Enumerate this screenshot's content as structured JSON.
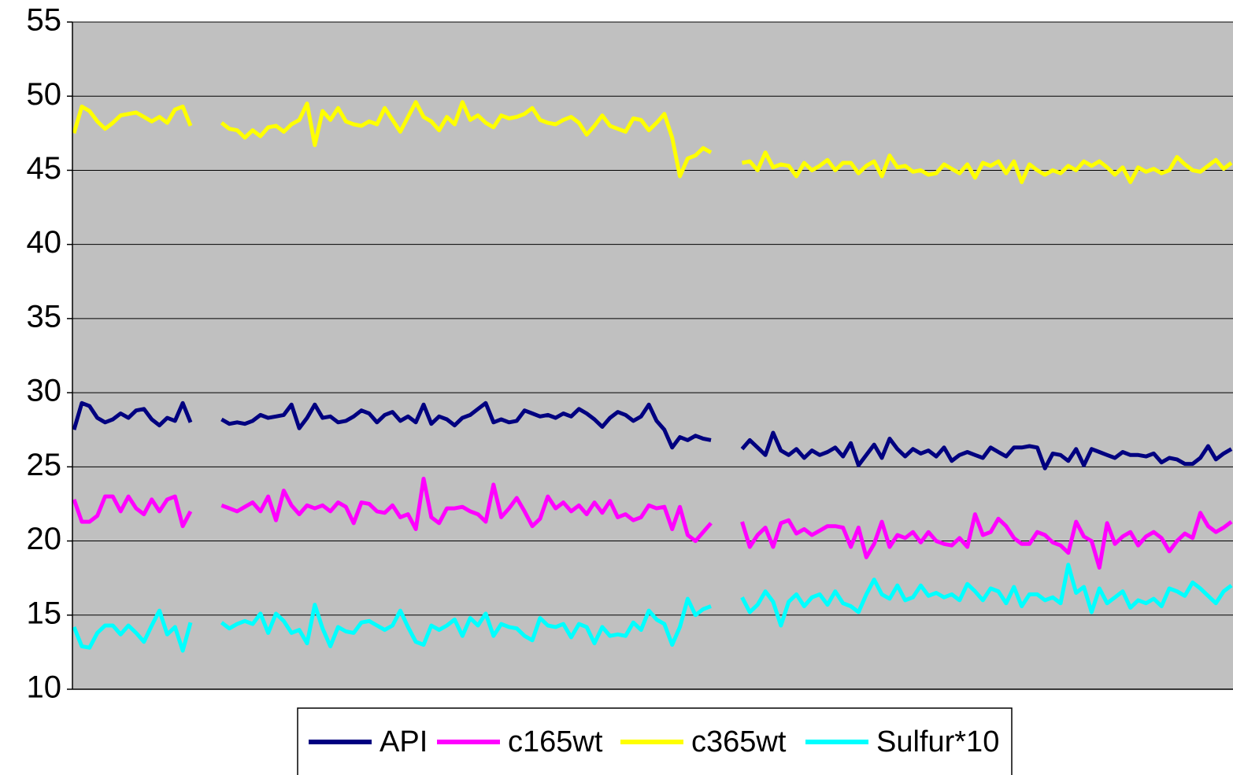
{
  "chart_data": {
    "type": "line",
    "ylim": [
      10,
      55
    ],
    "yticks": [
      10,
      15,
      20,
      25,
      30,
      35,
      40,
      45,
      50,
      55
    ],
    "grid": true,
    "legend": "bottom",
    "background": "#c0c0c0",
    "series": [
      {
        "name": "API",
        "color": "#000080",
        "values": [
          27.5,
          29.3,
          29.1,
          28.3,
          28.0,
          28.2,
          28.6,
          28.3,
          28.8,
          28.9,
          28.2,
          27.8,
          28.3,
          28.1,
          29.3,
          28.0,
          null,
          null,
          null,
          28.2,
          27.9,
          28.0,
          27.9,
          28.1,
          28.5,
          28.3,
          28.4,
          28.5,
          29.2,
          27.6,
          28.3,
          29.2,
          28.3,
          28.4,
          28.0,
          28.1,
          28.4,
          28.8,
          28.6,
          28.0,
          28.5,
          28.7,
          28.1,
          28.4,
          28.0,
          29.2,
          27.9,
          28.4,
          28.2,
          27.8,
          28.3,
          28.5,
          28.9,
          29.3,
          28.0,
          28.2,
          28.0,
          28.1,
          28.8,
          28.6,
          28.4,
          28.5,
          28.3,
          28.6,
          28.4,
          28.9,
          28.6,
          28.2,
          27.7,
          28.3,
          28.7,
          28.5,
          28.1,
          28.4,
          29.2,
          28.1,
          27.5,
          26.3,
          27.0,
          26.8,
          27.1,
          26.9,
          26.8,
          null,
          null,
          null,
          26.2,
          26.8,
          26.3,
          25.8,
          27.3,
          26.1,
          25.8,
          26.2,
          25.6,
          26.1,
          25.8,
          26.0,
          26.3,
          25.7,
          26.6,
          25.1,
          25.8,
          26.5,
          25.6,
          26.9,
          26.2,
          25.7,
          26.2,
          25.9,
          26.1,
          25.7,
          26.3,
          25.4,
          25.8,
          26.0,
          25.8,
          25.6,
          26.3,
          26.0,
          25.7,
          26.3,
          26.3,
          26.4,
          26.3,
          24.9,
          25.9,
          25.8,
          25.4,
          26.2,
          25.1,
          26.2,
          26.0,
          25.8,
          25.6,
          26.0,
          25.8,
          25.8,
          25.7,
          25.9,
          25.3,
          25.6,
          25.5,
          25.2,
          25.2,
          25.6,
          26.4,
          25.5,
          25.9,
          26.2
        ]
      },
      {
        "name": "c165wt",
        "color": "#ff00ff",
        "values": [
          22.8,
          21.3,
          21.3,
          21.7,
          23.0,
          23.0,
          22.0,
          23.0,
          22.2,
          21.8,
          22.8,
          22.0,
          22.8,
          23.0,
          21.0,
          22.0,
          null,
          null,
          null,
          22.4,
          22.2,
          22.0,
          22.3,
          22.6,
          22.0,
          23.0,
          21.4,
          23.4,
          22.4,
          21.8,
          22.4,
          22.2,
          22.4,
          22.0,
          22.6,
          22.3,
          21.2,
          22.6,
          22.5,
          22.0,
          21.9,
          22.4,
          21.6,
          21.8,
          20.8,
          24.2,
          21.6,
          21.2,
          22.2,
          22.2,
          22.3,
          22.0,
          21.8,
          21.3,
          23.8,
          21.6,
          22.2,
          22.9,
          22.0,
          21.0,
          21.5,
          23.0,
          22.2,
          22.6,
          22.0,
          22.4,
          21.8,
          22.6,
          21.9,
          22.7,
          21.6,
          21.8,
          21.4,
          21.6,
          22.4,
          22.2,
          22.3,
          20.8,
          22.3,
          20.4,
          20.0,
          20.6,
          21.2,
          null,
          null,
          null,
          21.3,
          19.6,
          20.4,
          20.9,
          19.6,
          21.2,
          21.4,
          20.5,
          20.8,
          20.4,
          20.7,
          21.0,
          21.0,
          20.9,
          19.6,
          20.9,
          18.9,
          19.8,
          21.3,
          19.6,
          20.4,
          20.2,
          20.6,
          19.9,
          20.6,
          20.0,
          19.8,
          19.7,
          20.2,
          19.6,
          21.8,
          20.4,
          20.6,
          21.5,
          21.0,
          20.2,
          19.8,
          19.8,
          20.6,
          20.4,
          19.9,
          19.7,
          19.2,
          21.3,
          20.3,
          20.0,
          18.2,
          21.2,
          19.8,
          20.3,
          20.6,
          19.7,
          20.3,
          20.6,
          20.2,
          19.3,
          20.0,
          20.5,
          20.2,
          21.9,
          21.0,
          20.6,
          20.9,
          21.3
        ]
      },
      {
        "name": "c365wt",
        "color": "#ffff00",
        "values": [
          47.5,
          49.3,
          49.0,
          48.3,
          47.8,
          48.2,
          48.7,
          48.8,
          48.9,
          48.6,
          48.3,
          48.6,
          48.2,
          49.1,
          49.3,
          48.0,
          null,
          null,
          null,
          48.2,
          47.8,
          47.7,
          47.2,
          47.7,
          47.3,
          47.9,
          48.0,
          47.6,
          48.1,
          48.4,
          49.5,
          46.7,
          49.0,
          48.4,
          49.2,
          48.3,
          48.1,
          48.0,
          48.3,
          48.1,
          49.2,
          48.4,
          47.6,
          48.6,
          49.6,
          48.6,
          48.3,
          47.7,
          48.6,
          48.1,
          49.6,
          48.4,
          48.7,
          48.2,
          47.9,
          48.7,
          48.5,
          48.6,
          48.8,
          49.2,
          48.4,
          48.2,
          48.1,
          48.4,
          48.6,
          48.2,
          47.4,
          48.0,
          48.7,
          48.0,
          47.8,
          47.6,
          48.5,
          48.4,
          47.7,
          48.2,
          48.8,
          47.2,
          44.6,
          45.8,
          46.0,
          46.5,
          46.2,
          null,
          null,
          null,
          45.5,
          45.6,
          45.0,
          46.2,
          45.2,
          45.4,
          45.3,
          44.6,
          45.5,
          45.0,
          45.3,
          45.7,
          45.0,
          45.5,
          45.5,
          44.8,
          45.3,
          45.6,
          44.6,
          46.0,
          45.2,
          45.3,
          44.9,
          45.0,
          44.7,
          44.8,
          45.4,
          45.1,
          44.8,
          45.4,
          44.5,
          45.5,
          45.3,
          45.6,
          44.8,
          45.6,
          44.2,
          45.4,
          45.0,
          44.7,
          45.0,
          44.8,
          45.3,
          45.0,
          45.6,
          45.3,
          45.6,
          45.2,
          44.7,
          45.2,
          44.2,
          45.2,
          44.9,
          45.1,
          44.8,
          45.0,
          45.9,
          45.4,
          45.0,
          44.9,
          45.3,
          45.7,
          45.1,
          45.5
        ]
      },
      {
        "name": "Sulfur*10",
        "color": "#00ffff",
        "values": [
          14.2,
          12.9,
          12.8,
          13.8,
          14.3,
          14.3,
          13.7,
          14.3,
          13.8,
          13.2,
          14.3,
          15.3,
          13.7,
          14.2,
          12.6,
          14.5,
          null,
          null,
          null,
          14.5,
          14.1,
          14.4,
          14.6,
          14.4,
          15.1,
          13.8,
          15.1,
          14.6,
          13.8,
          14.0,
          13.1,
          15.7,
          14.1,
          12.9,
          14.2,
          13.9,
          13.8,
          14.5,
          14.6,
          14.3,
          14.0,
          14.3,
          15.3,
          14.2,
          13.2,
          13.0,
          14.3,
          14.0,
          14.3,
          14.7,
          13.6,
          14.8,
          14.3,
          15.1,
          13.6,
          14.4,
          14.2,
          14.1,
          13.6,
          13.3,
          14.8,
          14.3,
          14.2,
          14.4,
          13.5,
          14.4,
          14.2,
          13.1,
          14.2,
          13.6,
          13.7,
          13.6,
          14.5,
          14.0,
          15.3,
          14.7,
          14.4,
          13.0,
          14.2,
          16.1,
          15.0,
          15.4,
          15.6,
          null,
          null,
          null,
          16.2,
          15.2,
          15.7,
          16.6,
          15.9,
          14.3,
          15.9,
          16.4,
          15.6,
          16.2,
          16.4,
          15.7,
          16.6,
          15.8,
          15.6,
          15.2,
          16.4,
          17.4,
          16.4,
          16.1,
          17.0,
          16.0,
          16.2,
          17.0,
          16.3,
          16.5,
          16.2,
          16.4,
          16.0,
          17.1,
          16.6,
          16.0,
          16.8,
          16.6,
          15.8,
          16.9,
          15.6,
          16.4,
          16.4,
          16.0,
          16.2,
          15.8,
          18.4,
          16.5,
          16.9,
          15.2,
          16.8,
          15.8,
          16.2,
          16.6,
          15.5,
          16.0,
          15.8,
          16.1,
          15.6,
          16.8,
          16.6,
          16.3,
          17.2,
          16.8,
          16.3,
          15.8,
          16.6,
          17.0
        ]
      }
    ]
  }
}
